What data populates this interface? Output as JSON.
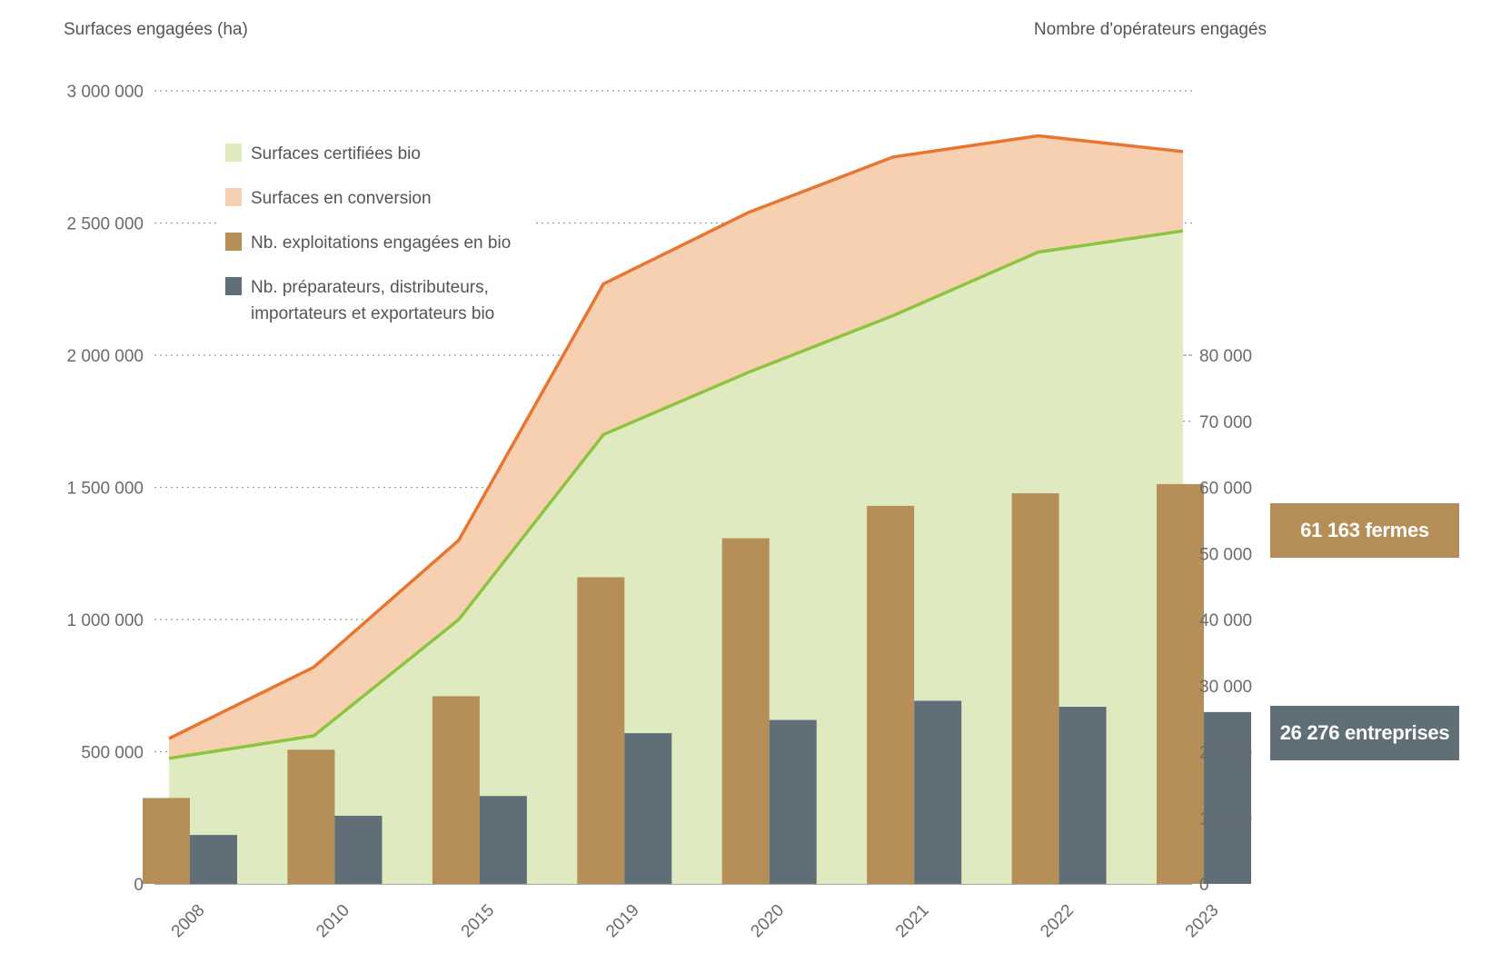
{
  "chart_data": {
    "type": "bar",
    "left_axis_title": "Surfaces engagées (ha)",
    "right_axis_title": "Nombre d'opérateurs engagés",
    "left_ticks": [
      "0",
      "500 000",
      "1 000 000",
      "1 500 000",
      "2 000 000",
      "2 500 000",
      "3 000 000"
    ],
    "left_ylim": [
      0,
      3000000
    ],
    "right_ticks": [
      "0",
      "10 000",
      "20 000",
      "30 000",
      "40 000",
      "50 000",
      "60 000",
      "70 000",
      "80 000"
    ],
    "right_ylim": [
      0,
      80000
    ],
    "grid": true,
    "categories": [
      "2008",
      "2010",
      "2015",
      "2019",
      "2020",
      "2021",
      "2022",
      "2023"
    ],
    "legend": [
      {
        "key": "certified",
        "lines": [
          "Surfaces certifiées bio"
        ],
        "color": "#dfeac0"
      },
      {
        "key": "conversion",
        "lines": [
          "Surfaces en conversion"
        ],
        "color": "#f7d0b2"
      },
      {
        "key": "farms",
        "lines": [
          "Nb. exploitations engagées en bio"
        ],
        "color": "#b58e58"
      },
      {
        "key": "companies",
        "lines": [
          "Nb. préparateurs, distributeurs,",
          "importateurs et exportateurs bio"
        ],
        "color": "#5f6e77"
      }
    ],
    "series": [
      {
        "key": "certified",
        "type": "area",
        "axis": "left",
        "values": [
          475000,
          560000,
          1000000,
          1700000,
          1935000,
          2150000,
          2390000,
          2470000
        ]
      },
      {
        "key": "total_engaged",
        "type": "area",
        "axis": "left",
        "values": [
          550000,
          820000,
          1300000,
          2270000,
          2540000,
          2750000,
          2830000,
          2770000
        ]
      },
      {
        "key": "farms",
        "type": "bar",
        "axis": "right",
        "values": [
          13000,
          20300,
          28400,
          46400,
          52300,
          57200,
          59100,
          60500
        ]
      },
      {
        "key": "companies",
        "type": "bar",
        "axis": "right",
        "values": [
          7400,
          10300,
          13300,
          22800,
          24800,
          27700,
          26800,
          26000
        ]
      }
    ],
    "line_colors": {
      "certified": "#8dc43f",
      "total_engaged": "#e87530"
    },
    "annotations": [
      {
        "key": "farms",
        "text": "61 163 fermes",
        "color": "#b58e58"
      },
      {
        "key": "companies",
        "text": "26 276 entreprises",
        "color": "#5f6e77"
      }
    ]
  }
}
